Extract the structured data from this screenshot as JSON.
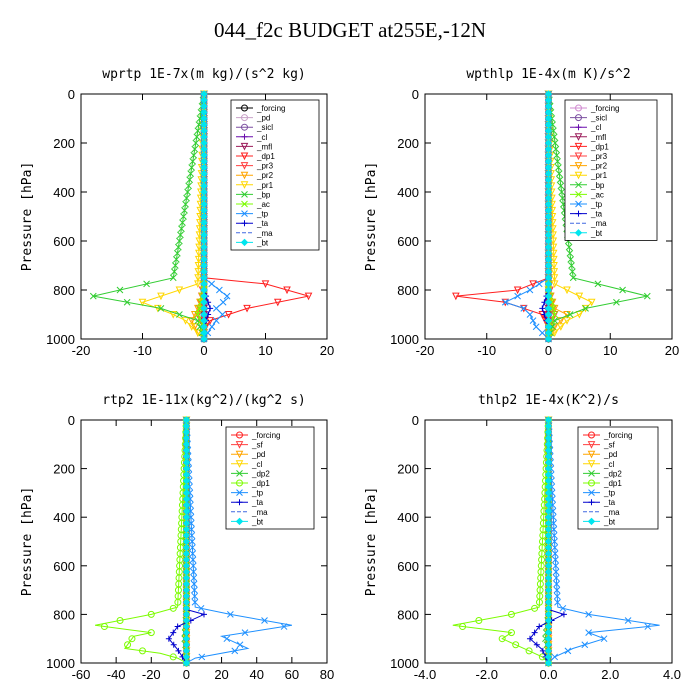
{
  "title": "044_f2c  BUDGET at255E,-12N",
  "chart_data": [
    {
      "type": "line",
      "title": "wprtp  1E-7x(m kg)/(s^2 kg)",
      "ylabel": "Pressure [hPa]",
      "xlim": [
        -20,
        20
      ],
      "ylim": [
        1000,
        0
      ],
      "xticks": [
        "-20",
        "-10",
        "0",
        "10",
        "20"
      ],
      "yticks": [
        "0",
        "200",
        "400",
        "600",
        "800",
        "1000"
      ],
      "legend_position": "top-right",
      "series": [
        {
          "name": "_forcing",
          "color": "#000000",
          "marker": "circle",
          "x": [
            0,
            0,
            0,
            0
          ],
          "y": [
            0,
            500,
            900,
            1000
          ]
        },
        {
          "name": "_pd",
          "color": "#c8a2c8",
          "marker": "circle",
          "x": [
            0,
            0,
            0
          ],
          "y": [
            0,
            500,
            1000
          ]
        },
        {
          "name": "_sicl",
          "color": "#7b4fa0",
          "marker": "circle",
          "x": [
            0,
            0,
            0
          ],
          "y": [
            0,
            500,
            1000
          ]
        },
        {
          "name": "_cl",
          "color": "#6a0dad",
          "marker": "plus",
          "x": [
            0,
            0,
            0
          ],
          "y": [
            0,
            500,
            1000
          ]
        },
        {
          "name": "_mfl",
          "color": "#9b1b5a",
          "marker": "triangle",
          "x": [
            0,
            0,
            0
          ],
          "y": [
            0,
            500,
            1000
          ]
        },
        {
          "name": "_dp1",
          "color": "#ff2020",
          "marker": "triangle",
          "x": [
            0,
            0,
            10,
            17,
            7,
            1,
            0,
            0
          ],
          "y": [
            0,
            750,
            775,
            825,
            875,
            925,
            960,
            1000
          ]
        },
        {
          "name": "_pr3",
          "color": "#ff4040",
          "marker": "triangle",
          "x": [
            0,
            0,
            -0.5,
            -1,
            0,
            0
          ],
          "y": [
            0,
            750,
            850,
            900,
            950,
            1000
          ]
        },
        {
          "name": "_pr2",
          "color": "#ffa500",
          "marker": "triangle",
          "x": [
            0,
            0,
            -1,
            -2,
            -1,
            0
          ],
          "y": [
            0,
            800,
            875,
            925,
            975,
            1000
          ]
        },
        {
          "name": "_pr1",
          "color": "#ffd700",
          "marker": "triangle",
          "x": [
            0,
            -1,
            -10,
            -5,
            -3,
            -2,
            -1,
            0
          ],
          "y": [
            0,
            775,
            850,
            900,
            925,
            950,
            975,
            1000
          ]
        },
        {
          "name": "_bp",
          "color": "#32cd32",
          "marker": "x",
          "x": [
            0,
            -5,
            -18,
            -7,
            -1,
            0
          ],
          "y": [
            0,
            750,
            825,
            875,
            925,
            1000
          ]
        },
        {
          "name": "_ac",
          "color": "#7cfc00",
          "marker": "x",
          "x": [
            0,
            0,
            -1,
            0,
            0
          ],
          "y": [
            0,
            800,
            900,
            950,
            1000
          ]
        },
        {
          "name": "_tp",
          "color": "#1e90ff",
          "marker": "x",
          "x": [
            0,
            0,
            2,
            4,
            2,
            3,
            2,
            1,
            0
          ],
          "y": [
            0,
            750,
            790,
            830,
            875,
            900,
            925,
            960,
            1000
          ]
        },
        {
          "name": "_ta",
          "color": "#0000cd",
          "marker": "plus",
          "x": [
            0,
            0,
            1,
            0,
            0
          ],
          "y": [
            0,
            800,
            875,
            950,
            1000
          ]
        },
        {
          "name": "_ma",
          "color": "#4169e1",
          "marker": "none",
          "x": [
            0,
            0,
            0
          ],
          "y": [
            0,
            500,
            1000
          ]
        },
        {
          "name": "_bt",
          "color": "#00e5ee",
          "marker": "diamond",
          "x": [
            0,
            0,
            0
          ],
          "y": [
            0,
            500,
            1000
          ]
        }
      ]
    },
    {
      "type": "line",
      "title": "wpthlp  1E-4x(m K)/s^2",
      "ylabel": "Pressure [hPa]",
      "xlim": [
        -20,
        20
      ],
      "ylim": [
        1000,
        0
      ],
      "xticks": [
        "-20",
        "-10",
        "0",
        "10",
        "20"
      ],
      "yticks": [
        "0",
        "200",
        "400",
        "600",
        "800",
        "1000"
      ],
      "legend_position": "top-right",
      "series": [
        {
          "name": "_forcing",
          "color": "#d08ad0",
          "marker": "circle",
          "x": [
            0,
            0,
            0
          ],
          "y": [
            0,
            500,
            1000
          ]
        },
        {
          "name": "_sicl",
          "color": "#7b4fa0",
          "marker": "circle",
          "x": [
            0,
            0,
            0
          ],
          "y": [
            0,
            500,
            1000
          ]
        },
        {
          "name": "_cl",
          "color": "#6a0dad",
          "marker": "plus",
          "x": [
            0,
            0,
            0
          ],
          "y": [
            0,
            500,
            1000
          ]
        },
        {
          "name": "_mfl",
          "color": "#9b1b5a",
          "marker": "triangle",
          "x": [
            0,
            0,
            0
          ],
          "y": [
            0,
            500,
            1000
          ]
        },
        {
          "name": "_dp1",
          "color": "#ff2020",
          "marker": "triangle",
          "x": [
            0,
            0,
            -5,
            -15,
            -7,
            -1,
            0,
            0
          ],
          "y": [
            0,
            750,
            800,
            825,
            850,
            900,
            950,
            1000
          ]
        },
        {
          "name": "_pr3",
          "color": "#ff4040",
          "marker": "triangle",
          "x": [
            0,
            0,
            0.5,
            1,
            0,
            0
          ],
          "y": [
            0,
            750,
            850,
            900,
            950,
            1000
          ]
        },
        {
          "name": "_pr2",
          "color": "#ffa500",
          "marker": "triangle",
          "x": [
            0,
            0,
            1,
            3,
            1,
            0
          ],
          "y": [
            0,
            800,
            875,
            900,
            950,
            1000
          ]
        },
        {
          "name": "_pr1",
          "color": "#ffd700",
          "marker": "triangle",
          "x": [
            0,
            1,
            7,
            5,
            3,
            1,
            0
          ],
          "y": [
            0,
            775,
            850,
            900,
            925,
            975,
            1000
          ]
        },
        {
          "name": "_bp",
          "color": "#32cd32",
          "marker": "x",
          "x": [
            0,
            4,
            16,
            6,
            1,
            0
          ],
          "y": [
            0,
            750,
            825,
            875,
            925,
            1000
          ]
        },
        {
          "name": "_ac",
          "color": "#7cfc00",
          "marker": "x",
          "x": [
            0,
            0,
            1,
            0,
            0
          ],
          "y": [
            0,
            800,
            900,
            950,
            1000
          ]
        },
        {
          "name": "_tp",
          "color": "#1e90ff",
          "marker": "x",
          "x": [
            0,
            0,
            -3,
            -7,
            -4,
            -3,
            -2,
            0
          ],
          "y": [
            0,
            750,
            800,
            850,
            875,
            900,
            950,
            1000
          ]
        },
        {
          "name": "_ta",
          "color": "#0000cd",
          "marker": "plus",
          "x": [
            0,
            0,
            -1,
            0,
            0
          ],
          "y": [
            0,
            800,
            875,
            950,
            1000
          ]
        },
        {
          "name": "_ma",
          "color": "#4169e1",
          "marker": "none",
          "x": [
            0,
            0,
            0
          ],
          "y": [
            0,
            500,
            1000
          ]
        },
        {
          "name": "_bt",
          "color": "#00e5ee",
          "marker": "diamond",
          "x": [
            0,
            0,
            0
          ],
          "y": [
            0,
            500,
            1000
          ]
        }
      ]
    },
    {
      "type": "line",
      "title": "rtp2  1E-11x(kg^2)/(kg^2 s)",
      "ylabel": "Pressure [hPa]",
      "xlim": [
        -60,
        80
      ],
      "ylim": [
        1000,
        0
      ],
      "xticks": [
        "-60",
        "-40",
        "-20",
        "0",
        "20",
        "40",
        "60",
        "80"
      ],
      "yticks": [
        "0",
        "200",
        "400",
        "600",
        "800",
        "1000"
      ],
      "legend_position": "top-right",
      "series": [
        {
          "name": "_forcing",
          "color": "#ff2020",
          "marker": "circle",
          "x": [
            0,
            0,
            0
          ],
          "y": [
            0,
            500,
            1000
          ]
        },
        {
          "name": "_sf",
          "color": "#ff4040",
          "marker": "triangle",
          "x": [
            0,
            0,
            0
          ],
          "y": [
            0,
            500,
            1000
          ]
        },
        {
          "name": "_pd",
          "color": "#ffa500",
          "marker": "triangle",
          "x": [
            0,
            0,
            0
          ],
          "y": [
            0,
            500,
            1000
          ]
        },
        {
          "name": "_cl",
          "color": "#ffd700",
          "marker": "triangle",
          "x": [
            0,
            0,
            0
          ],
          "y": [
            0,
            500,
            1000
          ]
        },
        {
          "name": "_dp2",
          "color": "#32cd32",
          "marker": "x",
          "x": [
            0,
            0,
            -1,
            0,
            0
          ],
          "y": [
            0,
            800,
            900,
            950,
            1000
          ]
        },
        {
          "name": "_dp1",
          "color": "#7cfc00",
          "marker": "circle",
          "x": [
            0,
            -5,
            -20,
            -52,
            -20,
            -30,
            -35,
            -15,
            -5,
            0
          ],
          "y": [
            0,
            770,
            800,
            845,
            875,
            890,
            940,
            960,
            980,
            1000
          ]
        },
        {
          "name": "_tp",
          "color": "#1e90ff",
          "marker": "x",
          "x": [
            0,
            5,
            25,
            60,
            20,
            35,
            5,
            0
          ],
          "y": [
            0,
            770,
            800,
            845,
            890,
            940,
            980,
            1000
          ]
        },
        {
          "name": "_ta",
          "color": "#0000cd",
          "marker": "plus",
          "x": [
            0,
            0,
            10,
            -5,
            -10,
            -5,
            0
          ],
          "y": [
            0,
            780,
            800,
            850,
            900,
            945,
            1000
          ]
        },
        {
          "name": "_ma",
          "color": "#4169e1",
          "marker": "none",
          "x": [
            0,
            0,
            0
          ],
          "y": [
            0,
            500,
            1000
          ]
        },
        {
          "name": "_bt",
          "color": "#00e5ee",
          "marker": "diamond",
          "x": [
            0,
            0,
            0
          ],
          "y": [
            0,
            500,
            1000
          ]
        }
      ]
    },
    {
      "type": "line",
      "title": "thlp2  1E-4x(K^2)/s",
      "ylabel": "Pressure [hPa]",
      "xlim": [
        -4,
        4
      ],
      "ylim": [
        1000,
        0
      ],
      "xticks": [
        "-4.0",
        "-2.0",
        "0.0",
        "2.0",
        "4.0"
      ],
      "yticks": [
        "0",
        "200",
        "400",
        "600",
        "800",
        "1000"
      ],
      "legend_position": "top-right",
      "series": [
        {
          "name": "_forcing",
          "color": "#ff2020",
          "marker": "circle",
          "x": [
            0,
            0,
            0
          ],
          "y": [
            0,
            500,
            1000
          ]
        },
        {
          "name": "_sf",
          "color": "#ff4040",
          "marker": "triangle",
          "x": [
            0,
            0,
            0
          ],
          "y": [
            0,
            500,
            1000
          ]
        },
        {
          "name": "_pd",
          "color": "#ffa500",
          "marker": "triangle",
          "x": [
            0,
            0,
            0
          ],
          "y": [
            0,
            500,
            1000
          ]
        },
        {
          "name": "_cl",
          "color": "#ffd700",
          "marker": "triangle",
          "x": [
            0,
            0,
            0
          ],
          "y": [
            0,
            500,
            1000
          ]
        },
        {
          "name": "_dp2",
          "color": "#32cd32",
          "marker": "x",
          "x": [
            0,
            0,
            -0.1,
            0,
            0
          ],
          "y": [
            0,
            800,
            900,
            950,
            1000
          ]
        },
        {
          "name": "_dp1",
          "color": "#7cfc00",
          "marker": "circle",
          "x": [
            0,
            -0.3,
            -1.2,
            -3.1,
            -1.2,
            -1.5,
            -0.8,
            -0.2,
            0
          ],
          "y": [
            0,
            770,
            800,
            845,
            875,
            900,
            940,
            975,
            1000
          ]
        },
        {
          "name": "_tp",
          "color": "#1e90ff",
          "marker": "x",
          "x": [
            0,
            0.3,
            1.3,
            3.6,
            1.3,
            1.8,
            0.8,
            0.2,
            0
          ],
          "y": [
            0,
            770,
            800,
            845,
            875,
            900,
            940,
            975,
            1000
          ]
        },
        {
          "name": "_ta",
          "color": "#0000cd",
          "marker": "plus",
          "x": [
            0,
            0,
            0.5,
            -0.3,
            -0.6,
            -0.2,
            0
          ],
          "y": [
            0,
            780,
            800,
            850,
            900,
            945,
            1000
          ]
        },
        {
          "name": "_ma",
          "color": "#4169e1",
          "marker": "none",
          "x": [
            0,
            0,
            0
          ],
          "y": [
            0,
            500,
            1000
          ]
        },
        {
          "name": "_bt",
          "color": "#00e5ee",
          "marker": "diamond",
          "x": [
            0,
            0,
            0
          ],
          "y": [
            0,
            500,
            1000
          ]
        }
      ]
    }
  ]
}
